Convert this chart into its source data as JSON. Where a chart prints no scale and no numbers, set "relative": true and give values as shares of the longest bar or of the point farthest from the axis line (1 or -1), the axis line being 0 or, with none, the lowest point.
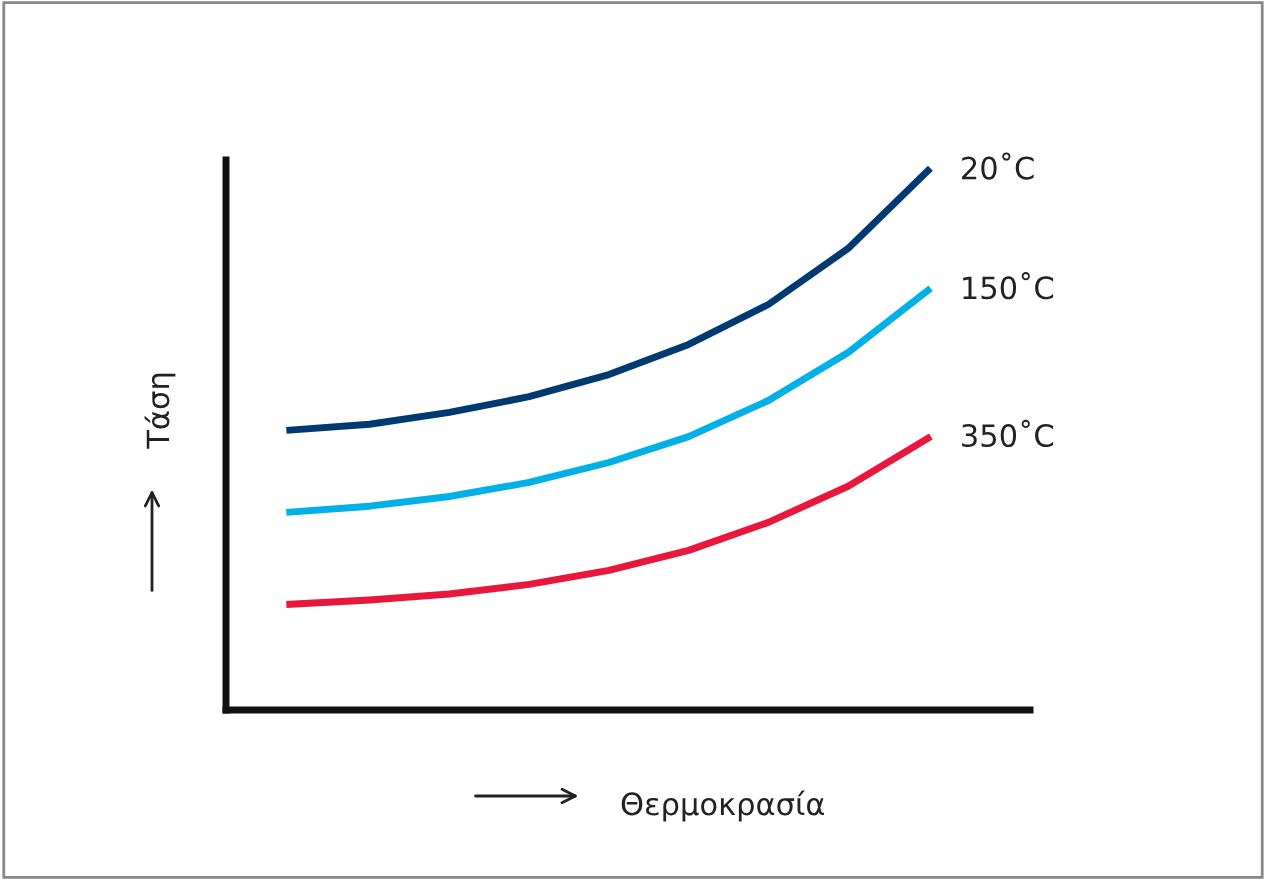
{
  "chart_data": {
    "type": "line",
    "relative": true,
    "xlabel": "Θερμοκρασία",
    "ylabel": "Τάση",
    "categories": [
      null,
      null,
      null,
      null,
      null,
      null,
      null,
      null,
      null
    ],
    "series": [
      {
        "name": "20˚C",
        "color": "#003a70",
        "values": [
          0.519,
          0.53,
          0.552,
          0.581,
          0.622,
          0.678,
          0.752,
          0.856,
          1.0
        ]
      },
      {
        "name": "150˚C",
        "color": "#00b0e6",
        "values": [
          0.367,
          0.378,
          0.396,
          0.422,
          0.459,
          0.507,
          0.574,
          0.663,
          0.778
        ]
      },
      {
        "name": "350˚C",
        "color": "#e8173b",
        "values": [
          0.196,
          0.204,
          0.215,
          0.233,
          0.259,
          0.296,
          0.348,
          0.415,
          0.504
        ]
      }
    ],
    "legend": false,
    "marker": "none",
    "line_style": "solid"
  }
}
